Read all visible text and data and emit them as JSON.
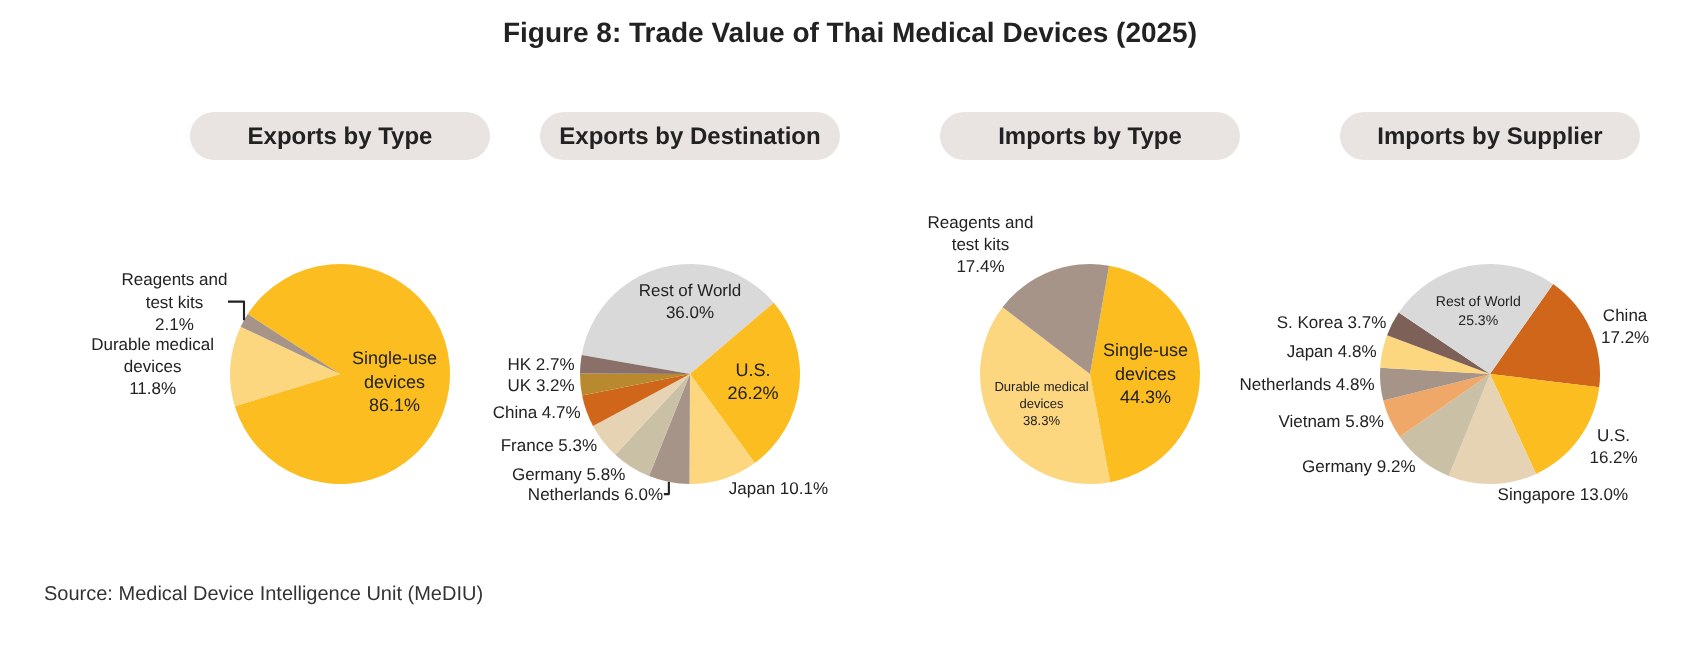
{
  "chart_data": [
    {
      "type": "other",
      "title": "Figure 8: Trade Value of Thai Medical Devices (2025)",
      "annotations": [
        "Source: Medical Device Intelligence Unit (MeDIU)"
      ]
    },
    {
      "type": "pie",
      "title": "Exports by Type",
      "categories": [
        "Single-use devices",
        "Durable medical devices",
        "Reagents and test kits"
      ],
      "values": [
        86.1,
        11.8,
        2.1
      ],
      "colors": [
        "#fbbd1f",
        "#fcd77f",
        "#a79488"
      ],
      "value_labels": [
        "86.1%",
        "11.8%",
        "2.1%"
      ]
    },
    {
      "type": "pie",
      "title": "Exports by Destination",
      "categories": [
        "Rest of World",
        "U.S.",
        "Japan",
        "Netherlands",
        "Germany",
        "France",
        "China",
        "UK",
        "HK"
      ],
      "values": [
        36.0,
        26.2,
        10.1,
        6.0,
        5.8,
        5.3,
        4.7,
        3.2,
        2.7
      ],
      "colors": [
        "#d9d9d9",
        "#fbbd1f",
        "#fcd77f",
        "#a79488",
        "#c9c0a6",
        "#e5d3b3",
        "#d0661a",
        "#b8892e",
        "#8a7068"
      ],
      "value_labels": [
        "36.0%",
        "26.2%",
        "10.1%",
        "6.0%",
        "5.8%",
        "5.3%",
        "4.7%",
        "3.2%",
        "2.7%"
      ]
    },
    {
      "type": "pie",
      "title": "Imports by Type",
      "categories": [
        "Single-use devices",
        "Durable medical devices",
        "Reagents and test kits"
      ],
      "values": [
        44.3,
        38.3,
        17.4
      ],
      "colors": [
        "#fbbd1f",
        "#fcd77f",
        "#a79488"
      ],
      "value_labels": [
        "44.3%",
        "38.3%",
        "17.4%"
      ]
    },
    {
      "type": "pie",
      "title": "Imports by Supplier",
      "categories": [
        "China",
        "U.S.",
        "Singapore",
        "Germany",
        "Vietnam",
        "Netherlands",
        "Japan",
        "S. Korea",
        "Rest of World"
      ],
      "values": [
        17.2,
        16.2,
        13.0,
        9.2,
        5.8,
        4.8,
        4.8,
        3.7,
        25.3
      ],
      "colors": [
        "#d0661a",
        "#fbbd1f",
        "#e5d3b3",
        "#c9c0a6",
        "#f0a868",
        "#a79488",
        "#fcd77f",
        "#7d6158",
        "#d9d9d9"
      ],
      "value_labels": [
        "17.2%",
        "16.2%",
        "13.0%",
        "9.2%",
        "5.8%",
        "4.8%",
        "4.8%",
        "3.7%",
        "25.3%"
      ]
    }
  ]
}
